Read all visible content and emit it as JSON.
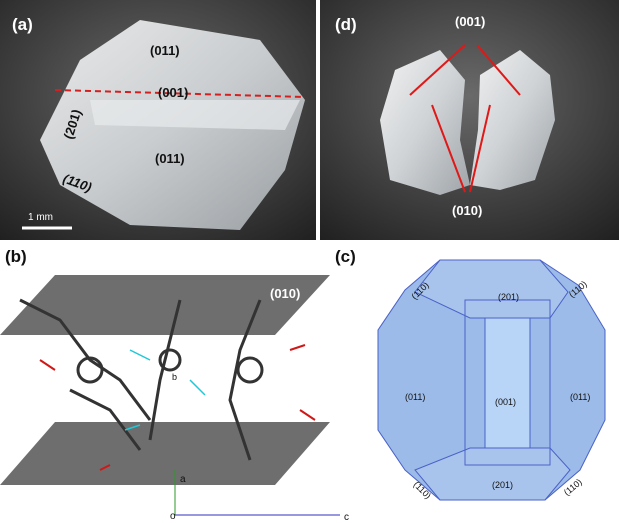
{
  "panels": [
    {
      "label": "(a)",
      "facets": [
        "(011)",
        "(001)",
        "(201)",
        "(011)",
        "(110)"
      ],
      "scale_bar": "1 mm"
    },
    {
      "label": "(b)",
      "plane": "(010)",
      "axes": [
        "a",
        "b",
        "c",
        "o"
      ]
    },
    {
      "label": "(c)",
      "facets": [
        "(110)",
        "(201)",
        "(110)",
        "(011)",
        "(001)",
        "(011)",
        "(110)",
        "(201)",
        "(110)"
      ]
    },
    {
      "label": "(d)",
      "facets": [
        "(001)",
        "(010)"
      ]
    }
  ]
}
